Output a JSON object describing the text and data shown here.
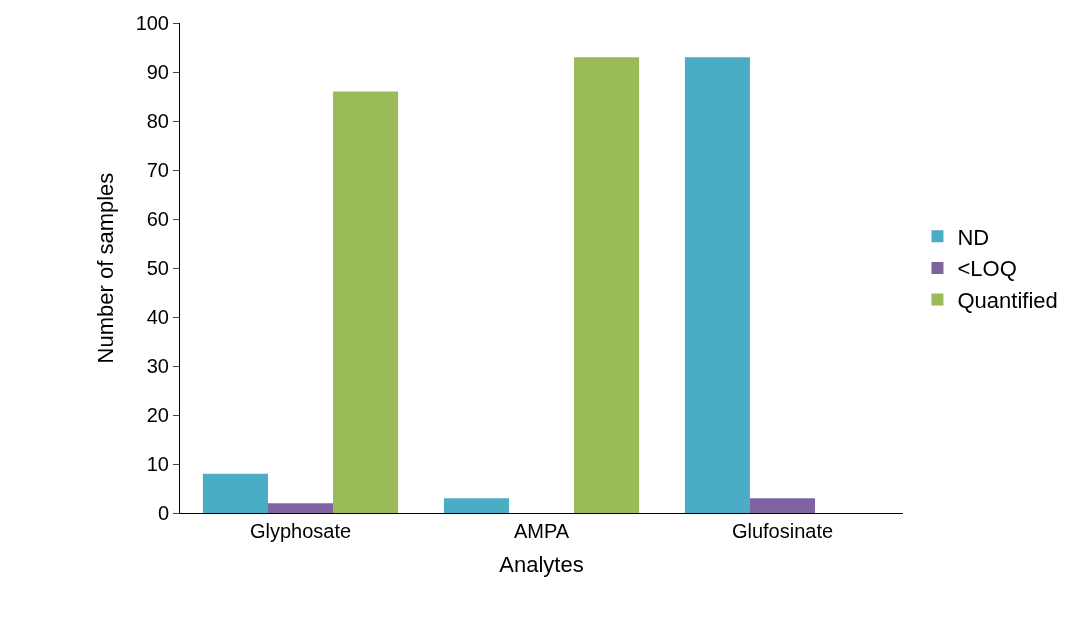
{
  "chart_data": {
    "type": "bar",
    "xlabel": "Analytes",
    "ylabel": "Number of samples",
    "categories": [
      "Glyphosate",
      "AMPA",
      "Glufosinate"
    ],
    "series": [
      {
        "name": "ND",
        "color": "#4bacc6",
        "values": [
          8,
          3,
          93
        ]
      },
      {
        "name": "<LOQ",
        "color": "#8064a2",
        "values": [
          2,
          0,
          3
        ]
      },
      {
        "name": "Quantified",
        "color": "#9bbb59",
        "values": [
          86,
          93,
          0
        ]
      }
    ],
    "ylim": [
      0,
      100
    ],
    "yticks": [
      0,
      10,
      20,
      30,
      40,
      50,
      60,
      70,
      80,
      90,
      100
    ],
    "legend": "right"
  }
}
